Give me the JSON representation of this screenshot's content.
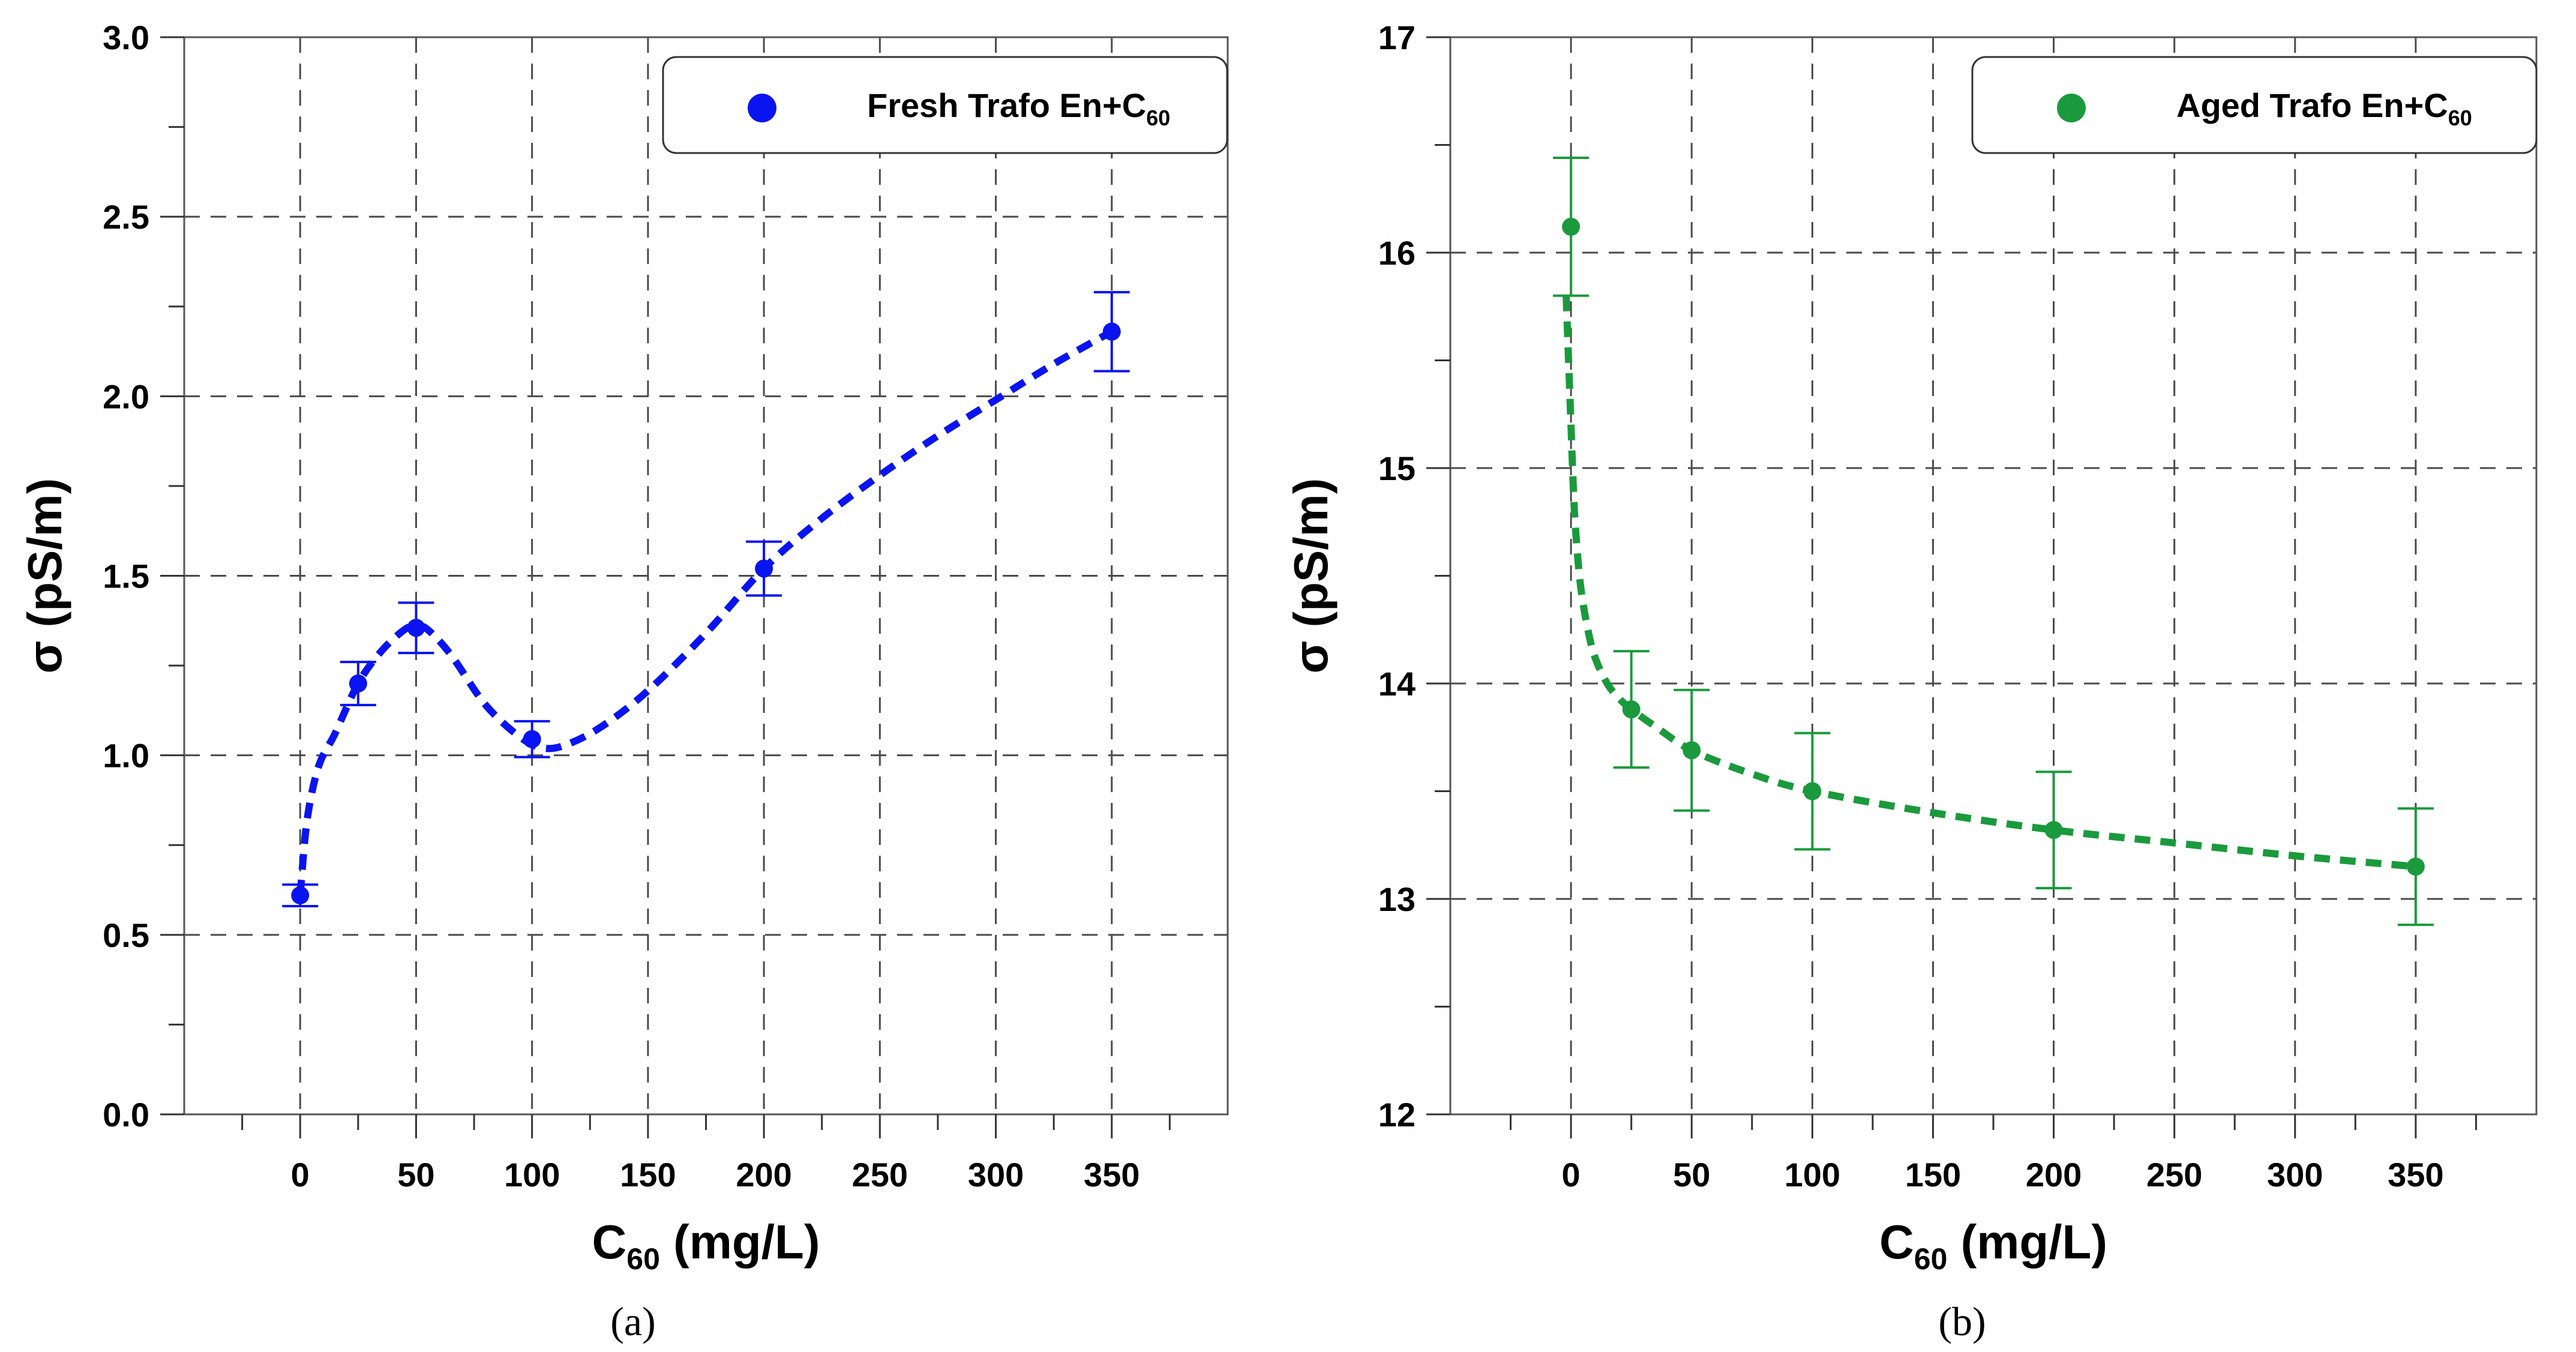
{
  "chart_data": [
    {
      "id": "a",
      "type": "scatter",
      "caption": "(a)",
      "xlabel": {
        "main": "C",
        "sub": "60",
        "rest": " (mg/L)"
      },
      "ylabel": "σ (pS/m)",
      "xlim": [
        -50,
        400
      ],
      "ylim": [
        0.0,
        3.0
      ],
      "xticks": [
        0,
        50,
        100,
        150,
        200,
        250,
        300,
        350
      ],
      "xtick_labels": [
        "0",
        "50",
        "100",
        "150",
        "200",
        "250",
        "300",
        "350"
      ],
      "xminor": [
        -25,
        25,
        75,
        125,
        175,
        225,
        275,
        325,
        375
      ],
      "yticks": [
        0.0,
        0.5,
        1.0,
        1.5,
        2.0,
        2.5,
        3.0
      ],
      "ytick_labels": [
        "0.0",
        "0.5",
        "1.0",
        "1.5",
        "2.0",
        "2.5",
        "3.0"
      ],
      "yminor": [
        0.25,
        0.75,
        1.25,
        1.75,
        2.25,
        2.75
      ],
      "grid": true,
      "legend_position": "top-right",
      "series": [
        {
          "name": "Fresh Trafo En+C60",
          "legend": {
            "main": "Fresh Trafo En+C",
            "sub": "60"
          },
          "color": "#0a14f0",
          "x": [
            0,
            25,
            50,
            100,
            200,
            350
          ],
          "y": [
            0.61,
            1.2,
            1.355,
            1.045,
            1.52,
            2.18
          ],
          "err": [
            0.03,
            0.06,
            0.07,
            0.05,
            0.075,
            0.11
          ],
          "fit_curve": {
            "x": [
              0,
              3,
              8,
              15,
              25,
              35,
              45,
              50,
              55,
              65,
              80,
              95,
              105,
              115,
              130,
              150,
              175,
              200,
              225,
              250,
              275,
              300,
              325,
              350
            ],
            "y": [
              0.61,
              0.82,
              0.97,
              1.06,
              1.2,
              1.29,
              1.35,
              1.36,
              1.35,
              1.28,
              1.14,
              1.05,
              1.02,
              1.03,
              1.08,
              1.18,
              1.34,
              1.52,
              1.66,
              1.78,
              1.89,
              1.99,
              2.09,
              2.18
            ]
          }
        }
      ]
    },
    {
      "id": "b",
      "type": "scatter",
      "caption": "(b)",
      "xlabel": {
        "main": "C",
        "sub": "60",
        "rest": " (mg/L)"
      },
      "ylabel": "σ (pS/m)",
      "xlim": [
        -50,
        400
      ],
      "ylim": [
        12,
        17
      ],
      "xticks": [
        0,
        50,
        100,
        150,
        200,
        250,
        300,
        350
      ],
      "xtick_labels": [
        "0",
        "50",
        "100",
        "150",
        "200",
        "250",
        "300",
        "350"
      ],
      "xminor": [
        -25,
        25,
        75,
        125,
        175,
        225,
        275,
        325,
        375
      ],
      "yticks": [
        12,
        13,
        14,
        15,
        16,
        17
      ],
      "ytick_labels": [
        "12",
        "13",
        "14",
        "15",
        "16",
        "17"
      ],
      "yminor": [
        12.5,
        13.5,
        14.5,
        15.5,
        16.5
      ],
      "grid": true,
      "legend_position": "top-right",
      "series": [
        {
          "name": "Aged Trafo En+C60",
          "legend": {
            "main": "Aged Trafo En+C",
            "sub": "60"
          },
          "color": "#1a9a3c",
          "x": [
            0,
            25,
            50,
            100,
            200,
            350
          ],
          "y": [
            16.12,
            13.88,
            13.69,
            13.5,
            13.32,
            13.15
          ],
          "err": [
            0.32,
            0.27,
            0.28,
            0.27,
            0.27,
            0.27
          ],
          "fit_curve": {
            "x": [
              -2,
              -1,
              0,
              1,
              2,
              4,
              7,
              10,
              15,
              20,
              25,
              35,
              50,
              75,
              100,
              150,
              200,
              250,
              300,
              350
            ],
            "y": [
              15.8,
              15.5,
              15.2,
              14.9,
              14.7,
              14.45,
              14.25,
              14.12,
              14.0,
              13.93,
              13.88,
              13.8,
              13.69,
              13.58,
              13.5,
              13.4,
              13.32,
              13.26,
              13.2,
              13.15
            ]
          }
        }
      ]
    }
  ]
}
